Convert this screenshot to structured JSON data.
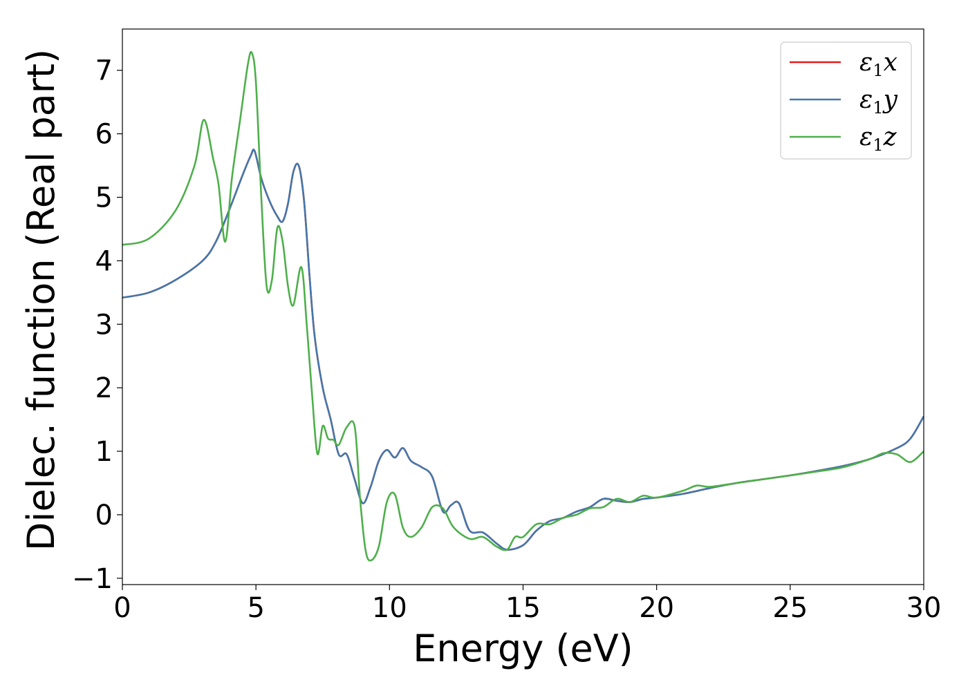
{
  "chart_data": {
    "type": "line",
    "xlabel": "Energy (eV)",
    "ylabel": "Dielec. function (Real part)",
    "xlim": [
      0,
      30
    ],
    "ylim": [
      -1.1,
      7.65
    ],
    "xticks": [
      0,
      5,
      10,
      15,
      20,
      25,
      30
    ],
    "yticks": [
      -1,
      0,
      1,
      2,
      3,
      4,
      5,
      6,
      7
    ],
    "xtick_labels": [
      "0",
      "5",
      "10",
      "15",
      "20",
      "25",
      "30"
    ],
    "ytick_labels": [
      "−1",
      "0",
      "1",
      "2",
      "3",
      "4",
      "5",
      "6",
      "7"
    ],
    "grid": false,
    "legend_position": "top-right",
    "series": [
      {
        "name": "ε1x",
        "legend_base": "ε",
        "legend_sub": "1",
        "legend_tail": "x",
        "color": "#e41a1c",
        "x": [
          0,
          1,
          2,
          3,
          3.5,
          4,
          4.5,
          4.8,
          4.95,
          5.2,
          5.5,
          5.8,
          6.0,
          6.2,
          6.4,
          6.6,
          6.8,
          7.0,
          7.2,
          7.5,
          7.8,
          8.1,
          8.4,
          8.7,
          9.0,
          9.3,
          9.6,
          9.9,
          10.2,
          10.5,
          10.8,
          11.2,
          11.6,
          12.0,
          12.3,
          12.6,
          13.0,
          13.5,
          14.0,
          14.4,
          15.0,
          15.5,
          16.0,
          16.5,
          17.0,
          17.5,
          18.0,
          18.5,
          19.0,
          19.5,
          20.0,
          21.0,
          22.0,
          23.0,
          24.0,
          25.0,
          26.0,
          27.0,
          28.0,
          29.0,
          29.5,
          30.0
        ],
        "y": [
          3.42,
          3.5,
          3.7,
          4.0,
          4.3,
          4.8,
          5.35,
          5.65,
          5.73,
          5.3,
          4.95,
          4.7,
          4.62,
          4.9,
          5.4,
          5.5,
          4.95,
          3.8,
          2.8,
          2.0,
          1.5,
          0.95,
          0.95,
          0.55,
          0.18,
          0.45,
          0.85,
          1.02,
          0.9,
          1.05,
          0.85,
          0.75,
          0.6,
          0.05,
          0.15,
          0.18,
          -0.25,
          -0.28,
          -0.45,
          -0.55,
          -0.48,
          -0.25,
          -0.1,
          -0.05,
          0.05,
          0.12,
          0.25,
          0.22,
          0.2,
          0.25,
          0.27,
          0.33,
          0.42,
          0.5,
          0.56,
          0.62,
          0.69,
          0.77,
          0.88,
          1.05,
          1.2,
          1.55
        ]
      },
      {
        "name": "ε1y",
        "legend_base": "ε",
        "legend_sub": "1",
        "legend_tail": "y",
        "color": "#4477aa",
        "x": [
          0,
          1,
          2,
          3,
          3.5,
          4,
          4.5,
          4.8,
          4.95,
          5.2,
          5.5,
          5.8,
          6.0,
          6.2,
          6.4,
          6.6,
          6.8,
          7.0,
          7.2,
          7.5,
          7.8,
          8.1,
          8.4,
          8.7,
          9.0,
          9.3,
          9.6,
          9.9,
          10.2,
          10.5,
          10.8,
          11.2,
          11.6,
          12.0,
          12.3,
          12.6,
          13.0,
          13.5,
          14.0,
          14.4,
          15.0,
          15.5,
          16.0,
          16.5,
          17.0,
          17.5,
          18.0,
          18.5,
          19.0,
          19.5,
          20.0,
          21.0,
          22.0,
          23.0,
          24.0,
          25.0,
          26.0,
          27.0,
          28.0,
          29.0,
          29.5,
          30.0
        ],
        "y": [
          3.42,
          3.5,
          3.7,
          4.0,
          4.3,
          4.8,
          5.35,
          5.65,
          5.73,
          5.3,
          4.95,
          4.7,
          4.62,
          4.9,
          5.4,
          5.5,
          4.95,
          3.8,
          2.8,
          2.0,
          1.5,
          0.95,
          0.95,
          0.55,
          0.18,
          0.45,
          0.85,
          1.02,
          0.9,
          1.05,
          0.85,
          0.75,
          0.6,
          0.05,
          0.15,
          0.18,
          -0.25,
          -0.28,
          -0.45,
          -0.55,
          -0.48,
          -0.25,
          -0.1,
          -0.05,
          0.05,
          0.12,
          0.25,
          0.22,
          0.2,
          0.25,
          0.27,
          0.33,
          0.42,
          0.5,
          0.56,
          0.62,
          0.69,
          0.77,
          0.88,
          1.05,
          1.2,
          1.55
        ]
      },
      {
        "name": "ε1z",
        "legend_base": "ε",
        "legend_sub": "1",
        "legend_tail": "z",
        "color": "#4daf4a",
        "x": [
          0,
          1,
          2,
          2.7,
          3.05,
          3.4,
          3.6,
          3.85,
          4.1,
          4.4,
          4.7,
          4.85,
          5.0,
          5.2,
          5.4,
          5.6,
          5.8,
          6.0,
          6.2,
          6.4,
          6.7,
          6.9,
          7.1,
          7.3,
          7.5,
          7.7,
          7.9,
          8.1,
          8.4,
          8.7,
          8.9,
          9.1,
          9.3,
          9.6,
          9.9,
          10.2,
          10.5,
          10.8,
          11.2,
          11.6,
          12.0,
          12.4,
          13.0,
          13.5,
          14.0,
          14.4,
          14.7,
          15.0,
          15.5,
          16.0,
          16.5,
          17.0,
          17.5,
          18.0,
          18.5,
          19.0,
          19.5,
          20.0,
          21.0,
          21.5,
          22.0,
          23.0,
          24.0,
          25.0,
          26.0,
          27.0,
          28.0,
          28.5,
          29.0,
          29.5,
          30.0
        ],
        "y": [
          4.25,
          4.35,
          4.8,
          5.5,
          6.22,
          5.6,
          5.2,
          4.3,
          5.3,
          6.2,
          7.1,
          7.27,
          6.8,
          5.0,
          3.6,
          3.7,
          4.52,
          4.3,
          3.6,
          3.3,
          3.9,
          3.0,
          1.9,
          0.96,
          1.4,
          1.2,
          1.18,
          1.1,
          1.38,
          1.38,
          0.25,
          -0.55,
          -0.72,
          -0.5,
          0.2,
          0.32,
          -0.2,
          -0.35,
          -0.2,
          0.12,
          0.1,
          -0.2,
          -0.38,
          -0.35,
          -0.5,
          -0.55,
          -0.35,
          -0.35,
          -0.15,
          -0.15,
          -0.05,
          0.0,
          0.1,
          0.12,
          0.25,
          0.2,
          0.3,
          0.27,
          0.38,
          0.46,
          0.44,
          0.5,
          0.56,
          0.62,
          0.68,
          0.75,
          0.88,
          0.97,
          0.95,
          0.83,
          1.0
        ]
      }
    ]
  }
}
